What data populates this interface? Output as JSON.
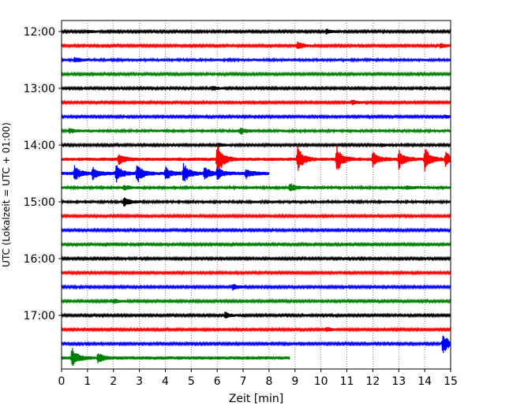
{
  "chart_data": {
    "type": "line",
    "title": "",
    "xlabel": "Zeit  [min]",
    "ylabel": "UTC (Lokalzeit = UTC + 01:00)",
    "xlim": [
      0,
      15
    ],
    "x_ticks": [
      "0",
      "1",
      "2",
      "3",
      "4",
      "5",
      "6",
      "7",
      "8",
      "9",
      "10",
      "11",
      "12",
      "13",
      "14",
      "15"
    ],
    "y_ticks": [
      "12:00",
      "13:00",
      "14:00",
      "15:00",
      "16:00",
      "17:00"
    ],
    "grid": "vertical-dotted",
    "legend": "none",
    "row_interval_minutes": 15,
    "row_colors": [
      "#000000",
      "#ff0000",
      "#0000ff",
      "#008000"
    ],
    "series": [
      {
        "start": "12:00",
        "color": "#000000",
        "base_amplitude": 1,
        "end_minute": 15,
        "bursts": [
          {
            "t": 1.0,
            "amp": 2
          },
          {
            "t": 10.2,
            "amp": 3
          }
        ]
      },
      {
        "start": "12:15",
        "color": "#ff0000",
        "base_amplitude": 1,
        "end_minute": 15,
        "bursts": [
          {
            "t": 9.1,
            "amp": 5
          },
          {
            "t": 14.6,
            "amp": 3
          }
        ]
      },
      {
        "start": "12:30",
        "color": "#0000ff",
        "base_amplitude": 1.2,
        "end_minute": 15,
        "bursts": [
          {
            "t": 0.5,
            "amp": 3
          }
        ]
      },
      {
        "start": "12:45",
        "color": "#008000",
        "base_amplitude": 1,
        "end_minute": 15,
        "bursts": []
      },
      {
        "start": "13:00",
        "color": "#000000",
        "base_amplitude": 1,
        "end_minute": 15,
        "bursts": [
          {
            "t": 5.8,
            "amp": 3
          }
        ]
      },
      {
        "start": "13:15",
        "color": "#ff0000",
        "base_amplitude": 1,
        "end_minute": 15,
        "bursts": [
          {
            "t": 11.2,
            "amp": 3
          }
        ]
      },
      {
        "start": "13:30",
        "color": "#0000ff",
        "base_amplitude": 1,
        "end_minute": 15,
        "bursts": [
          {
            "t": 14.8,
            "amp": 2
          }
        ]
      },
      {
        "start": "13:45",
        "color": "#008000",
        "base_amplitude": 1.2,
        "end_minute": 15,
        "bursts": [
          {
            "t": 0.3,
            "amp": 3
          },
          {
            "t": 6.9,
            "amp": 4
          }
        ]
      },
      {
        "start": "14:00",
        "color": "#000000",
        "base_amplitude": 1,
        "end_minute": 15,
        "bursts": [
          {
            "t": 6.0,
            "amp": 3
          },
          {
            "t": 12.3,
            "amp": 2
          }
        ]
      },
      {
        "start": "14:15",
        "color": "#ff0000",
        "base_amplitude": 1.5,
        "end_minute": 15,
        "bursts": [
          {
            "t": 2.2,
            "amp": 7
          },
          {
            "t": 6.0,
            "amp": 22
          },
          {
            "t": 9.1,
            "amp": 16
          },
          {
            "t": 10.6,
            "amp": 18
          },
          {
            "t": 12.0,
            "amp": 10
          },
          {
            "t": 13.0,
            "amp": 12
          },
          {
            "t": 14.0,
            "amp": 15
          },
          {
            "t": 14.8,
            "amp": 10
          }
        ]
      },
      {
        "start": "14:30",
        "color": "#0000ff",
        "base_amplitude": 1.5,
        "end_minute": 8.0,
        "bursts": [
          {
            "t": 0.5,
            "amp": 9
          },
          {
            "t": 1.2,
            "amp": 8
          },
          {
            "t": 2.1,
            "amp": 12
          },
          {
            "t": 2.9,
            "amp": 14
          },
          {
            "t": 4.0,
            "amp": 8
          },
          {
            "t": 4.7,
            "amp": 13
          },
          {
            "t": 5.5,
            "amp": 9
          },
          {
            "t": 6.0,
            "amp": 7
          },
          {
            "t": 7.1,
            "amp": 6
          }
        ]
      },
      {
        "start": "14:45",
        "color": "#008000",
        "base_amplitude": 1.2,
        "end_minute": 15,
        "bursts": [
          {
            "t": 2.4,
            "amp": 3
          },
          {
            "t": 8.8,
            "amp": 6
          },
          {
            "t": 13.3,
            "amp": 2
          }
        ]
      },
      {
        "start": "15:00",
        "color": "#000000",
        "base_amplitude": 1.2,
        "end_minute": 15,
        "bursts": [
          {
            "t": 2.4,
            "amp": 6
          }
        ]
      },
      {
        "start": "15:15",
        "color": "#ff0000",
        "base_amplitude": 1,
        "end_minute": 15,
        "bursts": []
      },
      {
        "start": "15:30",
        "color": "#0000ff",
        "base_amplitude": 1,
        "end_minute": 15,
        "bursts": []
      },
      {
        "start": "15:45",
        "color": "#008000",
        "base_amplitude": 1,
        "end_minute": 15,
        "bursts": []
      },
      {
        "start": "16:00",
        "color": "#000000",
        "base_amplitude": 1,
        "end_minute": 15,
        "bursts": []
      },
      {
        "start": "16:15",
        "color": "#ff0000",
        "base_amplitude": 1,
        "end_minute": 15,
        "bursts": []
      },
      {
        "start": "16:30",
        "color": "#0000ff",
        "base_amplitude": 1,
        "end_minute": 15,
        "bursts": [
          {
            "t": 6.6,
            "amp": 4
          }
        ]
      },
      {
        "start": "16:45",
        "color": "#008000",
        "base_amplitude": 1,
        "end_minute": 15,
        "bursts": [
          {
            "t": 2.0,
            "amp": 3
          }
        ]
      },
      {
        "start": "17:00",
        "color": "#000000",
        "base_amplitude": 1,
        "end_minute": 15,
        "bursts": [
          {
            "t": 6.3,
            "amp": 4
          }
        ]
      },
      {
        "start": "17:15",
        "color": "#ff0000",
        "base_amplitude": 1,
        "end_minute": 15,
        "bursts": [
          {
            "t": 10.2,
            "amp": 3
          }
        ]
      },
      {
        "start": "17:30",
        "color": "#0000ff",
        "base_amplitude": 1,
        "end_minute": 15,
        "bursts": [
          {
            "t": 14.7,
            "amp": 14
          }
        ]
      },
      {
        "start": "17:45",
        "color": "#008000",
        "base_amplitude": 1.5,
        "end_minute": 8.8,
        "bursts": [
          {
            "t": 0.4,
            "amp": 13
          },
          {
            "t": 1.4,
            "amp": 6
          }
        ]
      }
    ]
  }
}
